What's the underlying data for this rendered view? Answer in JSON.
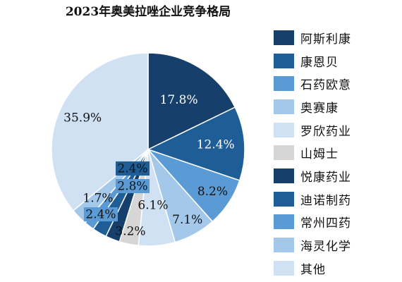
{
  "chart_data": {
    "type": "pie",
    "title": "2023年奥美拉唑企业竞争格局",
    "legend_position": "right",
    "slices": [
      {
        "name": "阿斯利康",
        "value": 17.8,
        "label": "17.8%",
        "color": "#16406b"
      },
      {
        "name": "康恩贝",
        "value": 12.4,
        "label": "12.4%",
        "color": "#1e5d96"
      },
      {
        "name": "石药欧意",
        "value": 8.2,
        "label": "8.2%",
        "color": "#5b9bd5"
      },
      {
        "name": "奥赛康",
        "value": 7.1,
        "label": "7.1%",
        "color": "#a4c8ea"
      },
      {
        "name": "罗欣药业",
        "value": 6.1,
        "label": "6.1%",
        "color": "#cfe1f3"
      },
      {
        "name": "山姆士",
        "value": 3.2,
        "label": "3.2%",
        "color": "#d6d6d6"
      },
      {
        "name": "悦康药业",
        "value": 2.4,
        "label": "2.4%",
        "color": "#16406b"
      },
      {
        "name": "迪诺制药",
        "value": 2.4,
        "label": "2.4%",
        "color": "#1e5d96"
      },
      {
        "name": "常州四药",
        "value": 1.7,
        "label": "1.7%",
        "color": "#5b9bd5"
      },
      {
        "name": "海灵化学",
        "value": 2.8,
        "label": "2.8%",
        "color": "#a4c8ea"
      },
      {
        "name": "其他",
        "value": 35.9,
        "label": "35.9%",
        "color": "#cfe1f3"
      }
    ]
  }
}
